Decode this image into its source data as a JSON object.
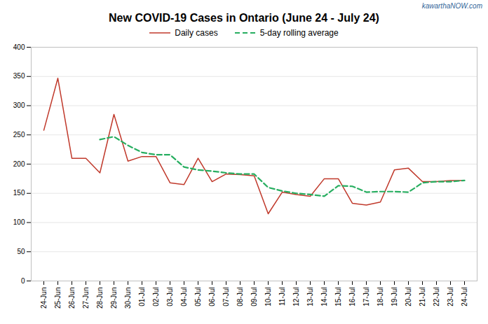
{
  "chart_data": {
    "type": "line",
    "title": "New COVID-19 Cases in Ontario (June 24 - July 24)",
    "annotations": [
      {
        "text": "kawarthaNOW.com",
        "color": "#336699"
      }
    ],
    "categories": [
      "24-Jun",
      "25-Jun",
      "26-Jun",
      "27-Jun",
      "28-Jun",
      "29-Jun",
      "30-Jun",
      "01-Jul",
      "02-Jul",
      "03-Jul",
      "04-Jul",
      "05-Jul",
      "06-Jul",
      "07-Jul",
      "08-Jul",
      "09-Jul",
      "10-Jul",
      "11-Jul",
      "12-Jul",
      "13-Jul",
      "14-Jul",
      "15-Jul",
      "16-Jul",
      "17-Jul",
      "18-Jul",
      "19-Jul",
      "20-Jul",
      "21-Jul",
      "22-Jul",
      "23-Jul",
      "24-Jul"
    ],
    "series": [
      {
        "name": "Daily cases",
        "color": "#c0392b",
        "line_style": "solid",
        "values": [
          258,
          347,
          210,
          210,
          185,
          285,
          205,
          213,
          213,
          168,
          165,
          210,
          170,
          183,
          182,
          180,
          115,
          152,
          148,
          145,
          175,
          175,
          133,
          130,
          135,
          190,
          193,
          170,
          170,
          172,
          172
        ]
      },
      {
        "name": "5-day rolling average",
        "color": "#27ae60",
        "line_style": "dashed",
        "values": [
          null,
          null,
          null,
          null,
          242,
          247,
          232,
          220,
          216,
          216,
          195,
          190,
          188,
          185,
          183,
          183,
          160,
          154,
          150,
          148,
          145,
          163,
          162,
          152,
          153,
          153,
          152,
          168,
          170,
          170,
          172
        ]
      }
    ],
    "ylim": [
      0,
      400
    ],
    "yticks": [
      0,
      50,
      100,
      150,
      200,
      250,
      300,
      350,
      400
    ],
    "grid": true,
    "legend": "top"
  }
}
